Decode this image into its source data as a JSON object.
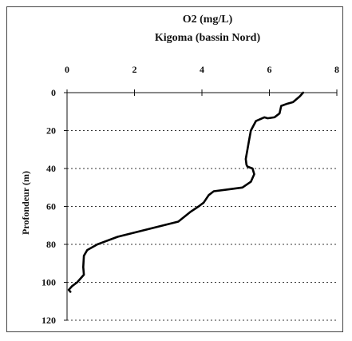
{
  "chart_data": {
    "type": "line",
    "title": "O2 (mg/L)",
    "subtitle": "Kigoma (bassin Nord)",
    "xlabel": "",
    "ylabel": "Profondeur (m)",
    "x_axis_position": "top",
    "y_inverted": true,
    "xlim": [
      0,
      8
    ],
    "ylim": [
      0,
      120
    ],
    "x_ticks": [
      "0",
      "2",
      "4",
      "6",
      "8"
    ],
    "y_ticks": [
      "0",
      "20",
      "40",
      "60",
      "80",
      "100",
      "120"
    ],
    "grid": "horizontal dashed",
    "line_color": "#000000",
    "series": [
      {
        "x": [
          7.0,
          6.9,
          6.7,
          6.5,
          6.35,
          6.3,
          6.15,
          5.95,
          5.85,
          5.6,
          5.45,
          5.4,
          5.35,
          5.3,
          5.32,
          5.35,
          5.5,
          5.55,
          5.45,
          5.2,
          4.8,
          4.35,
          4.2,
          4.05,
          3.9,
          3.65,
          3.3,
          2.4,
          1.5,
          0.9,
          0.6,
          0.5,
          0.48,
          0.5,
          0.3,
          0.15,
          0.05,
          0.1
        ],
        "y": [
          0,
          2,
          5,
          6,
          7,
          11,
          13,
          13.5,
          13,
          15,
          20,
          25,
          30,
          35,
          38,
          39,
          40,
          43,
          47,
          50,
          51,
          52,
          54,
          58,
          60,
          63,
          68,
          72,
          76,
          80,
          83,
          86,
          92,
          96,
          100,
          102,
          104,
          105
        ]
      }
    ]
  }
}
